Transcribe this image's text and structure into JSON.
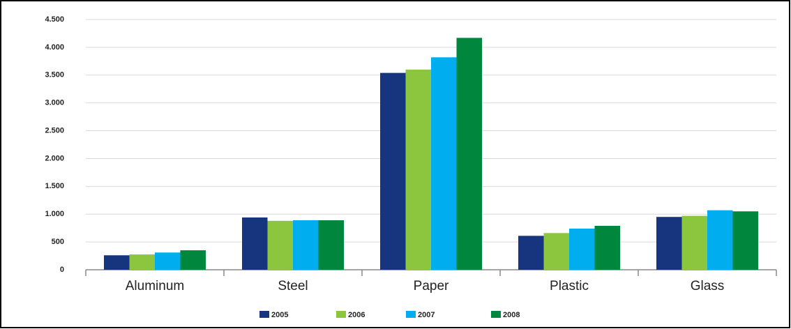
{
  "chart_data": {
    "type": "bar",
    "categories": [
      "Aluminum",
      "Steel",
      "Paper",
      "Plastic",
      "Glass"
    ],
    "series": [
      {
        "name": "2005",
        "color": "#17357f",
        "values": [
          260,
          940,
          3540,
          610,
          950
        ]
      },
      {
        "name": "2006",
        "color": "#8cc63f",
        "values": [
          275,
          880,
          3600,
          660,
          970
        ]
      },
      {
        "name": "2007",
        "color": "#00aeef",
        "values": [
          310,
          890,
          3820,
          740,
          1070
        ]
      },
      {
        "name": "2008",
        "color": "#00873e",
        "values": [
          350,
          890,
          4170,
          790,
          1050
        ]
      }
    ],
    "ylim": [
      0,
      4500
    ],
    "yticks": [
      0,
      500,
      {
        "value": 1000,
        "label": "1.000"
      },
      {
        "value": 1500,
        "label": "1.500"
      },
      {
        "value": 2000,
        "label": "2.000"
      },
      {
        "value": 2500,
        "label": "2.500"
      },
      {
        "value": 3000,
        "label": "3.000"
      },
      {
        "value": 3500,
        "label": "3.500"
      },
      {
        "value": 4000,
        "label": "4.000"
      },
      {
        "value": 4500,
        "label": "4.500"
      }
    ],
    "grid": true,
    "legend": "bottom"
  }
}
